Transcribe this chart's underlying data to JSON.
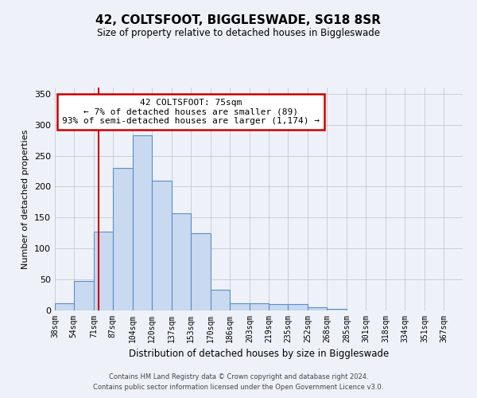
{
  "title1": "42, COLTSFOOT, BIGGLESWADE, SG18 8SR",
  "title2": "Size of property relative to detached houses in Biggleswade",
  "xlabel": "Distribution of detached houses by size in Biggleswade",
  "ylabel": "Number of detached properties",
  "bin_labels": [
    "38sqm",
    "54sqm",
    "71sqm",
    "87sqm",
    "104sqm",
    "120sqm",
    "137sqm",
    "153sqm",
    "170sqm",
    "186sqm",
    "203sqm",
    "219sqm",
    "235sqm",
    "252sqm",
    "268sqm",
    "285sqm",
    "301sqm",
    "318sqm",
    "334sqm",
    "351sqm",
    "367sqm"
  ],
  "bar_values": [
    12,
    48,
    127,
    230,
    283,
    210,
    157,
    125,
    33,
    12,
    12,
    10,
    10,
    5,
    2,
    0,
    0,
    0,
    0,
    0,
    0
  ],
  "bar_color": "#c8d9f0",
  "bar_edge_color": "#5b8dc8",
  "property_line_x": 75,
  "bin_edges": [
    38,
    54,
    71,
    87,
    104,
    120,
    137,
    153,
    170,
    186,
    203,
    219,
    235,
    252,
    268,
    285,
    301,
    318,
    334,
    351,
    367,
    383
  ],
  "ylim": [
    0,
    360
  ],
  "yticks": [
    0,
    50,
    100,
    150,
    200,
    250,
    300,
    350
  ],
  "annotation_title": "42 COLTSFOOT: 75sqm",
  "annotation_line1": "← 7% of detached houses are smaller (89)",
  "annotation_line2": "93% of semi-detached houses are larger (1,174) →",
  "annotation_box_color": "#ffffff",
  "annotation_box_edge": "#cc0000",
  "red_line_color": "#cc0000",
  "footnote1": "Contains HM Land Registry data © Crown copyright and database right 2024.",
  "footnote2": "Contains public sector information licensed under the Open Government Licence v3.0.",
  "background_color": "#eef2f8"
}
